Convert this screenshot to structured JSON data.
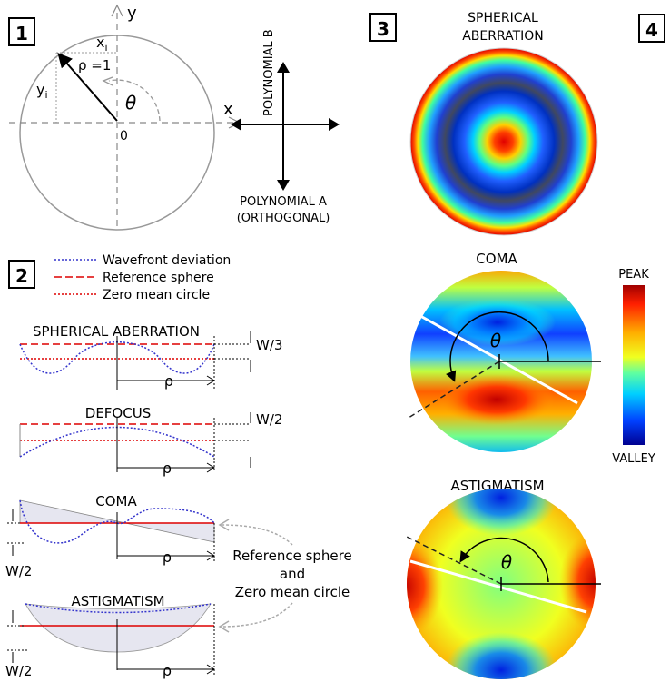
{
  "panel1": {
    "badge": "1",
    "axis_y": "y",
    "axis_x": "x",
    "xi": "x",
    "xi_sub": "i",
    "yi": "y",
    "yi_sub": "i",
    "rho": "ρ =1",
    "theta": "θ",
    "origin": "0",
    "poly_b": "POLYNOMIAL B",
    "poly_a": "POLYNOMIAL A",
    "poly_a2": "(ORTHOGONAL)"
  },
  "panel2": {
    "badge": "2",
    "legend": [
      {
        "label": "Wavefront deviation",
        "color": "#3333cc",
        "dash": "2,2"
      },
      {
        "label": "Reference sphere",
        "color": "#dd0000",
        "dash": "8,4"
      },
      {
        "label": "Zero mean circle",
        "color": "#dd0000",
        "dash": "2,2"
      }
    ],
    "spherical": {
      "title": "SPHERICAL ABERRATION",
      "measure": "W/3",
      "rho": "ρ"
    },
    "defocus": {
      "title": "DEFOCUS",
      "measure": "W/2",
      "rho": "ρ"
    },
    "coma": {
      "title": "COMA",
      "measure": "W/2",
      "rho": "ρ"
    },
    "astig": {
      "title": "ASTIGMATISM",
      "measure": "W/2",
      "rho": "ρ"
    },
    "note1": "Reference sphere",
    "note2": "and",
    "note3": "Zero mean circle"
  },
  "panel3": {
    "badge": "3",
    "spherical_title1": "SPHERICAL",
    "spherical_title2": "ABERRATION",
    "coma_title": "COMA",
    "astig_title": "ASTIGMATISM",
    "theta": "θ"
  },
  "panel4": {
    "badge": "4",
    "peak": "PEAK",
    "valley": "VALLEY"
  }
}
